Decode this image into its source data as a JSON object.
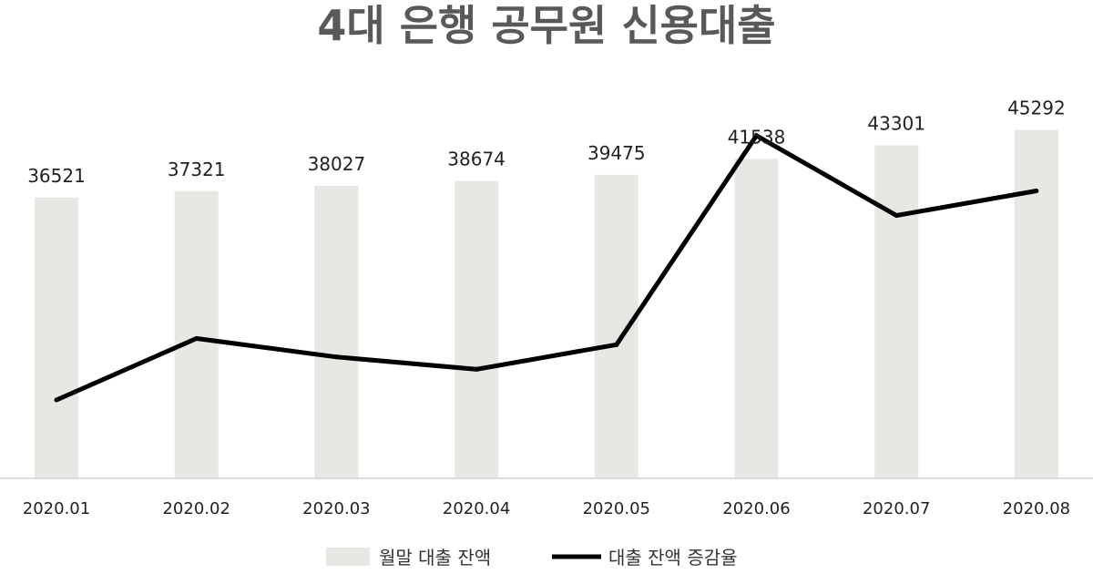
{
  "chart_data": {
    "type": "bar",
    "title": "4대 은행 공무원 신용대출",
    "categories": [
      "2020.01",
      "2020.02",
      "2020.03",
      "2020.04",
      "2020.05",
      "2020.06",
      "2020.07",
      "2020.08"
    ],
    "series": [
      {
        "name": "월말 대출 잔액",
        "type": "bar",
        "values": [
          36521,
          37321,
          38027,
          38674,
          39475,
          41538,
          43301,
          45292
        ],
        "color": "#e8e7e4"
      },
      {
        "name": "대출 잔액 증감율",
        "type": "line",
        "values": [
          1.2,
          2.2,
          1.9,
          1.7,
          2.1,
          5.5,
          4.2,
          4.6
        ],
        "color": "#000000"
      }
    ],
    "ylim_bar": [
      0,
      50000
    ],
    "ylim_line": [
      0,
      6
    ],
    "grid": false,
    "legend_position": "bottom-center"
  }
}
